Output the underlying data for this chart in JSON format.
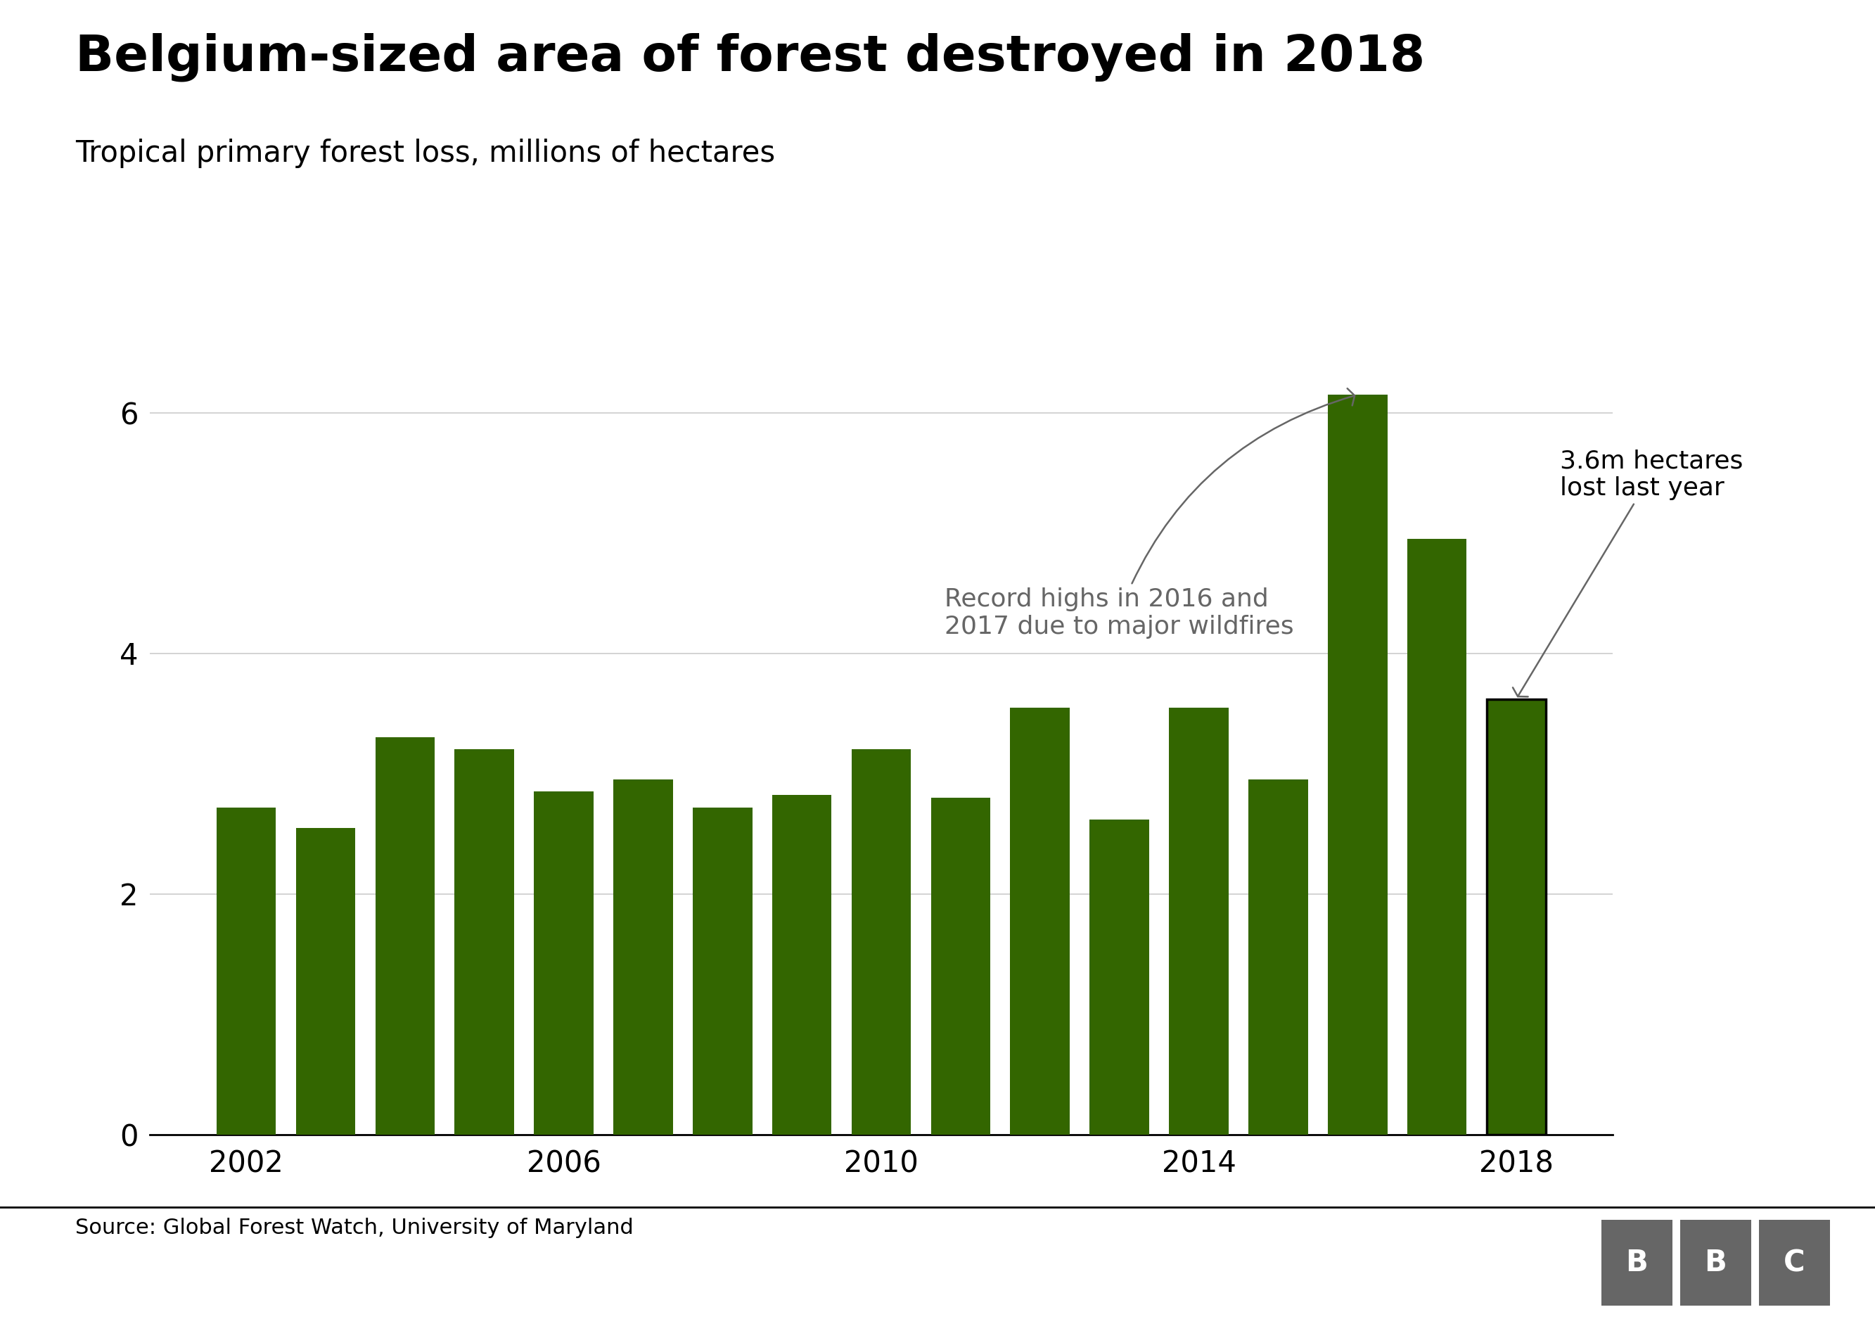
{
  "title": "Belgium-sized area of forest destroyed in 2018",
  "subtitle": "Tropical primary forest loss, millions of hectares",
  "source": "Source: Global Forest Watch, University of Maryland",
  "years": [
    2002,
    2003,
    2004,
    2005,
    2006,
    2007,
    2008,
    2009,
    2010,
    2011,
    2012,
    2013,
    2014,
    2015,
    2016,
    2017,
    2018
  ],
  "values": [
    2.72,
    2.55,
    3.3,
    3.2,
    2.85,
    2.95,
    2.72,
    2.82,
    3.2,
    2.8,
    3.55,
    2.62,
    3.55,
    2.95,
    6.15,
    4.95,
    3.62
  ],
  "bar_color": "#336600",
  "last_bar_edgecolor": "#000000",
  "background_color": "#ffffff",
  "ylim": [
    0,
    6.8
  ],
  "yticks": [
    0,
    2,
    4,
    6
  ],
  "xtick_years": [
    2002,
    2006,
    2010,
    2014,
    2018
  ],
  "annotation_wildfires_text": "Record highs in 2016 and\n2017 due to major wildfires",
  "annotation_hectares_text": "3.6m hectares\nlost last year",
  "grid_color": "#cccccc",
  "title_fontsize": 52,
  "subtitle_fontsize": 30,
  "source_fontsize": 22,
  "tick_fontsize": 30,
  "annotation_fontsize": 26,
  "annotation_color": "#666666",
  "bbc_box_color": "#666666"
}
